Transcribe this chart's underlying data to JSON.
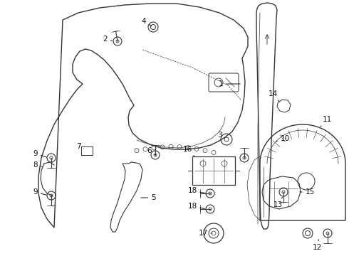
{
  "bg_color": "#ffffff",
  "line_color": "#333333",
  "label_color": "#111111",
  "figsize": [
    4.9,
    3.6
  ],
  "dpi": 100
}
